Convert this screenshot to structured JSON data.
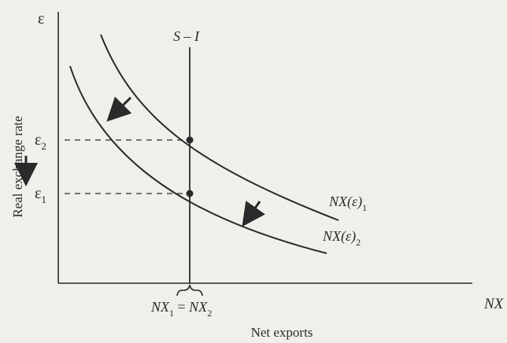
{
  "diagram": {
    "y_axis_symbol": "ε",
    "y_axis_label": "Real exchange rate",
    "x_axis_symbol": "NX",
    "x_axis_label": "Net exports",
    "vertical_line_label": "S – I",
    "curve_1_label_main": "NX(ε)",
    "curve_1_label_sub": "1",
    "curve_2_label_main": "NX(ε)",
    "curve_2_label_sub": "2",
    "eps2_main": "ε",
    "eps2_sub": "2",
    "eps1_main": "ε",
    "eps1_sub": "1",
    "bottom_label_nx1_main": "NX",
    "bottom_label_nx1_sub": "1",
    "bottom_label_eq": " = ",
    "bottom_label_nx2_main": "NX",
    "bottom_label_nx2_sub": "2",
    "colors": {
      "ink": "#2a2a2a",
      "background": "#f1efea"
    }
  }
}
